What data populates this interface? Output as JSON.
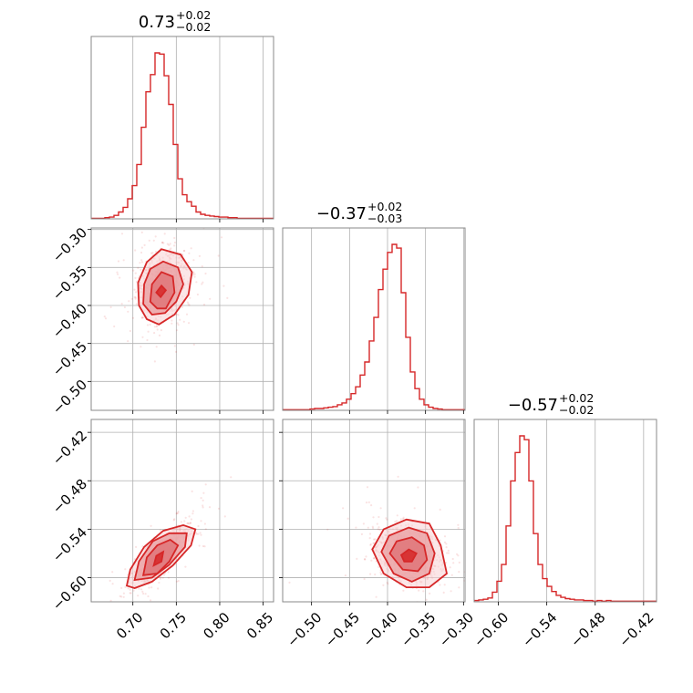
{
  "chart_data": {
    "type": "corner",
    "color": "#d62728",
    "grid": true,
    "parameters": [
      {
        "title_value": "0.73",
        "title_plus": "+0.02",
        "title_minus": "−0.02",
        "range": [
          0.652,
          0.862
        ],
        "ticks": [
          0.7,
          0.75,
          0.8,
          0.85
        ],
        "tick_labels": [
          "0.70",
          "0.75",
          "0.80",
          "0.85"
        ],
        "hist_edges_start": 0.652,
        "hist_bin_width": 0.00525,
        "hist_counts": [
          1,
          1,
          1,
          2,
          3,
          6,
          12,
          20,
          35,
          58,
          95,
          160,
          222,
          252,
          290,
          288,
          250,
          200,
          130,
          70,
          42,
          30,
          22,
          12,
          8,
          6,
          5,
          4,
          3,
          3,
          2,
          2,
          1,
          1,
          1,
          1,
          1,
          1,
          1,
          1
        ]
      },
      {
        "title_value": "−0.37",
        "title_plus": "+0.02",
        "title_minus": "−0.03",
        "range": [
          -0.538,
          -0.298
        ],
        "ticks": [
          -0.5,
          -0.45,
          -0.4,
          -0.35,
          -0.3
        ],
        "tick_labels": [
          "−0.50",
          "−0.45",
          "−0.40",
          "−0.35",
          "−0.30"
        ],
        "hist_edges_start": -0.538,
        "hist_bin_width": 0.006,
        "hist_counts": [
          1,
          1,
          1,
          1,
          1,
          1,
          2,
          3,
          3,
          4,
          5,
          6,
          9,
          12,
          18,
          27,
          38,
          57,
          78,
          112,
          150,
          195,
          228,
          255,
          268,
          262,
          190,
          118,
          62,
          35,
          18,
          9,
          5,
          3,
          2,
          1,
          1,
          1,
          1,
          1
        ]
      },
      {
        "title_value": "−0.57",
        "title_plus": "+0.02",
        "title_minus": "−0.02",
        "range": [
          -0.63,
          -0.404
        ],
        "ticks": [
          -0.6,
          -0.54,
          -0.48,
          -0.42
        ],
        "tick_labels": [
          "−0.60",
          "−0.54",
          "−0.48",
          "−0.42"
        ],
        "hist_edges_start": -0.63,
        "hist_bin_width": 0.00565,
        "hist_counts": [
          2,
          3,
          4,
          6,
          15,
          32,
          58,
          118,
          188,
          232,
          258,
          252,
          188,
          106,
          58,
          36,
          24,
          16,
          10,
          7,
          5,
          4,
          3,
          3,
          2,
          2,
          1,
          2,
          1,
          2,
          1,
          1,
          1,
          1,
          1,
          1,
          1,
          1,
          1,
          1
        ]
      }
    ],
    "pairs": [
      {
        "row": 1,
        "col": 0,
        "mean": [
          0.733,
          -0.372
        ],
        "sd": [
          0.0145,
          0.021
        ],
        "rho": 0.15,
        "contour_levels": [
          [
            [
              0.727,
              -0.383
            ],
            [
              0.733,
              -0.374
            ],
            [
              0.738,
              -0.38
            ],
            [
              0.732,
              -0.389
            ]
          ],
          [
            [
              0.72,
              -0.395
            ],
            [
              0.722,
              -0.372
            ],
            [
              0.733,
              -0.356
            ],
            [
              0.746,
              -0.362
            ],
            [
              0.748,
              -0.383
            ],
            [
              0.738,
              -0.404
            ],
            [
              0.728,
              -0.404
            ]
          ],
          [
            [
              0.712,
              -0.398
            ],
            [
              0.713,
              -0.372
            ],
            [
              0.72,
              -0.352
            ],
            [
              0.735,
              -0.342
            ],
            [
              0.752,
              -0.35
            ],
            [
              0.758,
              -0.372
            ],
            [
              0.75,
              -0.395
            ],
            [
              0.737,
              -0.41
            ],
            [
              0.722,
              -0.412
            ]
          ],
          [
            [
              0.707,
              -0.4
            ],
            [
              0.706,
              -0.37
            ],
            [
              0.716,
              -0.343
            ],
            [
              0.733,
              -0.326
            ],
            [
              0.755,
              -0.333
            ],
            [
              0.768,
              -0.356
            ],
            [
              0.764,
              -0.386
            ],
            [
              0.748,
              -0.412
            ],
            [
              0.73,
              -0.425
            ],
            [
              0.716,
              -0.418
            ]
          ]
        ]
      },
      {
        "row": 2,
        "col": 0,
        "mean": [
          0.733,
          -0.572
        ],
        "sd": [
          0.0145,
          0.017
        ],
        "rho": 0.78,
        "contour_levels": [
          [
            [
              0.724,
              -0.585
            ],
            [
              0.727,
              -0.573
            ],
            [
              0.735,
              -0.568
            ],
            [
              0.733,
              -0.58
            ]
          ],
          [
            [
              0.712,
              -0.597
            ],
            [
              0.716,
              -0.575
            ],
            [
              0.728,
              -0.56
            ],
            [
              0.743,
              -0.553
            ],
            [
              0.752,
              -0.56
            ],
            [
              0.742,
              -0.58
            ],
            [
              0.728,
              -0.595
            ]
          ],
          [
            [
              0.702,
              -0.603
            ],
            [
              0.707,
              -0.58
            ],
            [
              0.723,
              -0.555
            ],
            [
              0.742,
              -0.545
            ],
            [
              0.762,
              -0.545
            ],
            [
              0.76,
              -0.562
            ],
            [
              0.742,
              -0.584
            ],
            [
              0.722,
              -0.6
            ]
          ],
          [
            [
              0.693,
              -0.61
            ],
            [
              0.697,
              -0.59
            ],
            [
              0.713,
              -0.562
            ],
            [
              0.735,
              -0.542
            ],
            [
              0.758,
              -0.535
            ],
            [
              0.772,
              -0.54
            ],
            [
              0.767,
              -0.56
            ],
            [
              0.746,
              -0.585
            ],
            [
              0.722,
              -0.605
            ],
            [
              0.702,
              -0.613
            ]
          ]
        ]
      },
      {
        "row": 2,
        "col": 1,
        "mean": [
          -0.372,
          -0.572
        ],
        "sd": [
          0.021,
          0.017
        ],
        "rho": -0.22,
        "contour_levels": [
          [
            [
              -0.382,
              -0.572
            ],
            [
              -0.372,
              -0.565
            ],
            [
              -0.362,
              -0.57
            ],
            [
              -0.368,
              -0.58
            ],
            [
              -0.378,
              -0.58
            ]
          ],
          [
            [
              -0.397,
              -0.57
            ],
            [
              -0.388,
              -0.555
            ],
            [
              -0.368,
              -0.55
            ],
            [
              -0.352,
              -0.56
            ],
            [
              -0.348,
              -0.578
            ],
            [
              -0.36,
              -0.592
            ],
            [
              -0.38,
              -0.59
            ]
          ],
          [
            [
              -0.408,
              -0.568
            ],
            [
              -0.398,
              -0.548
            ],
            [
              -0.372,
              -0.538
            ],
            [
              -0.348,
              -0.545
            ],
            [
              -0.338,
              -0.57
            ],
            [
              -0.345,
              -0.595
            ],
            [
              -0.368,
              -0.605
            ],
            [
              -0.392,
              -0.595
            ]
          ],
          [
            [
              -0.42,
              -0.565
            ],
            [
              -0.405,
              -0.54
            ],
            [
              -0.375,
              -0.528
            ],
            [
              -0.345,
              -0.533
            ],
            [
              -0.33,
              -0.56
            ],
            [
              -0.322,
              -0.595
            ],
            [
              -0.345,
              -0.612
            ],
            [
              -0.375,
              -0.612
            ],
            [
              -0.405,
              -0.595
            ]
          ]
        ]
      }
    ]
  }
}
